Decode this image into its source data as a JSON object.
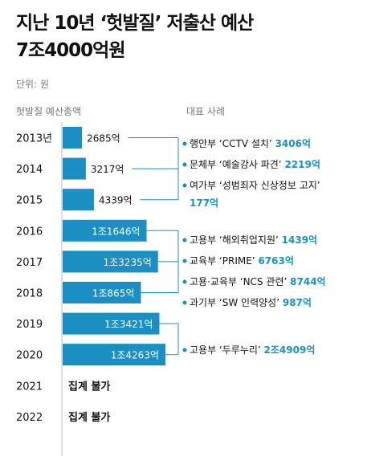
{
  "title_line1": "지난 10년 ‘헛발질’ 저출산 예산",
  "title_line2": "7조4000억원",
  "unit_label": "단위: 원",
  "left_header": "헛발질 예산총액",
  "right_header": "대표 사례",
  "colors": {
    "bar": "#1b8fc4",
    "accent": "#1b8fc4",
    "text": "#111111",
    "muted": "#777777"
  },
  "chart_data": {
    "type": "bar",
    "orientation": "horizontal",
    "unit": "억원",
    "categories": [
      "2013년",
      "2014",
      "2015",
      "2016",
      "2017",
      "2018",
      "2019",
      "2020",
      "2021",
      "2022"
    ],
    "values": [
      2685,
      3217,
      4339,
      11646,
      13235,
      10865,
      13421,
      14263,
      null,
      null
    ],
    "value_labels": [
      "2685억",
      "3217억",
      "4339억",
      "1조1646억",
      "1조3235억",
      "1조865억",
      "1조3421억",
      "1조4263억",
      "집계 불가",
      "집계 불가"
    ],
    "groups": [
      {
        "rows": [
          0,
          2
        ],
        "items": [
          {
            "text": "행안부 ‘CCTV 설치’",
            "amount": "3406억"
          },
          {
            "text": "문체부 ‘예술강사 파견’",
            "amount": "2219억"
          },
          {
            "text": "여가부 ‘성범죄자 신상정보 고지’",
            "amount": "177억"
          }
        ]
      },
      {
        "rows": [
          3,
          5
        ],
        "items": [
          {
            "text": "고용부 ‘해외취업지원’",
            "amount": "1439억"
          },
          {
            "text": "교육부 ‘PRIME’",
            "amount": "6763억"
          },
          {
            "text": "고용·교육부 ‘NCS 관련’",
            "amount": "8744억"
          },
          {
            "text": "과기부 ‘SW 인력양성’",
            "amount": "987억"
          }
        ]
      },
      {
        "rows": [
          6,
          7
        ],
        "items": [
          {
            "text": "고용부 ‘두루누리’",
            "amount": "2조4909억"
          }
        ]
      }
    ]
  }
}
